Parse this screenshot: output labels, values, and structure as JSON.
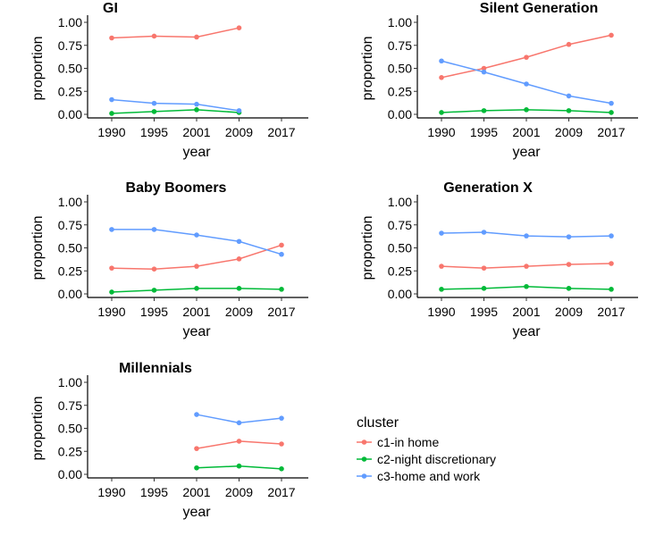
{
  "chart_data": {
    "type": "line",
    "y_label": "proportion",
    "x_label": "year",
    "categories": [
      "1990",
      "1995",
      "2001",
      "2009",
      "2017"
    ],
    "y_ticks": [
      "0.00",
      "0.25",
      "0.50",
      "0.75",
      "1.00"
    ],
    "ylim": [
      0,
      1
    ],
    "legend": {
      "title": "cluster",
      "items": [
        {
          "label": "c1-in home",
          "color": "#F8766D"
        },
        {
          "label": "c2-night discretionary",
          "color": "#00BA38"
        },
        {
          "label": "c3-home and work",
          "color": "#619CFF"
        }
      ]
    },
    "panels": [
      {
        "title": "GI",
        "series": [
          {
            "name": "c1-in home",
            "values": [
              0.83,
              0.85,
              0.84,
              0.94,
              null
            ]
          },
          {
            "name": "c2-night discretionary",
            "values": [
              0.01,
              0.03,
              0.05,
              0.02,
              null
            ]
          },
          {
            "name": "c3-home and work",
            "values": [
              0.16,
              0.12,
              0.11,
              0.04,
              null
            ]
          }
        ]
      },
      {
        "title": "Silent Generation",
        "series": [
          {
            "name": "c1-in home",
            "values": [
              0.4,
              0.5,
              0.62,
              0.76,
              0.86
            ]
          },
          {
            "name": "c2-night discretionary",
            "values": [
              0.02,
              0.04,
              0.05,
              0.04,
              0.02
            ]
          },
          {
            "name": "c3-home and work",
            "values": [
              0.58,
              0.46,
              0.33,
              0.2,
              0.12
            ]
          }
        ]
      },
      {
        "title": "Baby Boomers",
        "series": [
          {
            "name": "c1-in home",
            "values": [
              0.28,
              0.27,
              0.3,
              0.38,
              0.53
            ]
          },
          {
            "name": "c2-night discretionary",
            "values": [
              0.02,
              0.04,
              0.06,
              0.06,
              0.05
            ]
          },
          {
            "name": "c3-home and work",
            "values": [
              0.7,
              0.7,
              0.64,
              0.57,
              0.43
            ]
          }
        ]
      },
      {
        "title": "Generation X",
        "series": [
          {
            "name": "c1-in home",
            "values": [
              0.3,
              0.28,
              0.3,
              0.32,
              0.33
            ]
          },
          {
            "name": "c2-night discretionary",
            "values": [
              0.05,
              0.06,
              0.08,
              0.06,
              0.05
            ]
          },
          {
            "name": "c3-home and work",
            "values": [
              0.66,
              0.67,
              0.63,
              0.62,
              0.63
            ]
          }
        ]
      },
      {
        "title": "Millennials",
        "series": [
          {
            "name": "c1-in home",
            "values": [
              null,
              null,
              0.28,
              0.36,
              0.33
            ]
          },
          {
            "name": "c2-night discretionary",
            "values": [
              null,
              null,
              0.07,
              0.09,
              0.06
            ]
          },
          {
            "name": "c3-home and work",
            "values": [
              null,
              null,
              0.65,
              0.56,
              0.61
            ]
          }
        ]
      }
    ]
  }
}
